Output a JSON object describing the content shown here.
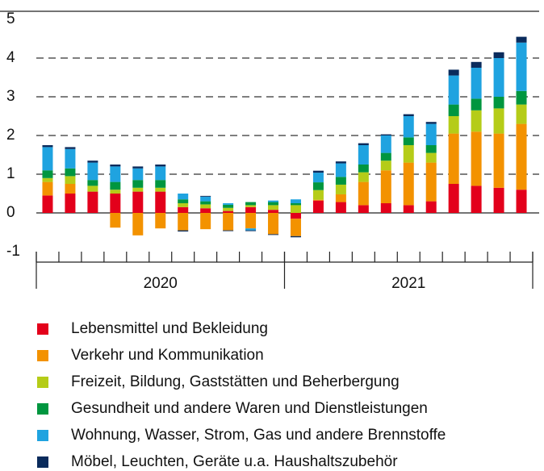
{
  "chart_data": {
    "type": "bar",
    "stacked": true,
    "categories": [
      null,
      null,
      null,
      null,
      null,
      null,
      null,
      null,
      null,
      null,
      null,
      null,
      null,
      null,
      null,
      null,
      null,
      null,
      null,
      null,
      null,
      null
    ],
    "groups": [
      "2020",
      "2021"
    ],
    "ylim": [
      -1,
      5
    ],
    "yticks": [
      -1,
      0,
      1,
      2,
      3,
      4,
      5
    ],
    "grid": true,
    "series": [
      {
        "name": "Lebensmittel und Bekleidung",
        "color": "#e3001b",
        "values": [
          0.45,
          0.5,
          0.55,
          0.5,
          0.55,
          0.55,
          0.15,
          0.12,
          0.05,
          0.15,
          0.08,
          -0.15,
          0.32,
          0.28,
          0.2,
          0.25,
          0.2,
          0.3,
          0.75,
          0.7,
          0.65,
          0.6
        ]
      },
      {
        "name": "Verkehr und Kommunikation",
        "color": "#f39200",
        "values": [
          0.35,
          0.25,
          0,
          -0.38,
          -0.58,
          -0.4,
          -0.45,
          -0.42,
          -0.45,
          -0.4,
          -0.55,
          -0.45,
          0.02,
          0.2,
          0.6,
          0.85,
          1.1,
          1.0,
          1.3,
          1.4,
          1.4,
          1.7
        ]
      },
      {
        "name": "Freizeit, Bildung, Gaststätten und Beherbergung",
        "color": "#b5cc18",
        "values": [
          0.1,
          0.2,
          0.15,
          0.1,
          0.1,
          0.1,
          0.1,
          0.1,
          0.08,
          0.05,
          0.12,
          0.2,
          0.25,
          0.25,
          0.25,
          0.25,
          0.45,
          0.25,
          0.45,
          0.55,
          0.65,
          0.5
        ]
      },
      {
        "name": "Gesundheit und andere Waren und Dienstleistungen",
        "color": "#00963f",
        "values": [
          0.2,
          0.2,
          0.15,
          0.2,
          0.2,
          0.2,
          0.1,
          0.08,
          0.08,
          0.08,
          0.08,
          0.05,
          0.2,
          0.2,
          0.2,
          0.2,
          0.2,
          0.2,
          0.3,
          0.3,
          0.3,
          0.35
        ]
      },
      {
        "name": "Wohnung, Wasser, Strom, Gas und andere Brennstoffe",
        "color": "#1fa3e0",
        "values": [
          0.6,
          0.5,
          0.45,
          0.4,
          0.3,
          0.35,
          0.15,
          0.12,
          0.04,
          -0.05,
          0.04,
          0.1,
          0.25,
          0.35,
          0.5,
          0.45,
          0.55,
          0.55,
          0.75,
          0.8,
          1.0,
          1.25
        ]
      },
      {
        "name": "Möbel, Leuchten, Geräte u.a. Haushaltszubehör",
        "color": "#0a2b5c",
        "values": [
          0.05,
          0.05,
          0.05,
          0.05,
          0.05,
          0.05,
          -0.03,
          0.02,
          -0.02,
          -0.02,
          -0.02,
          -0.03,
          0.05,
          0.05,
          0.05,
          0.03,
          0.05,
          0.05,
          0.15,
          0.15,
          0.15,
          0.15
        ]
      }
    ]
  }
}
